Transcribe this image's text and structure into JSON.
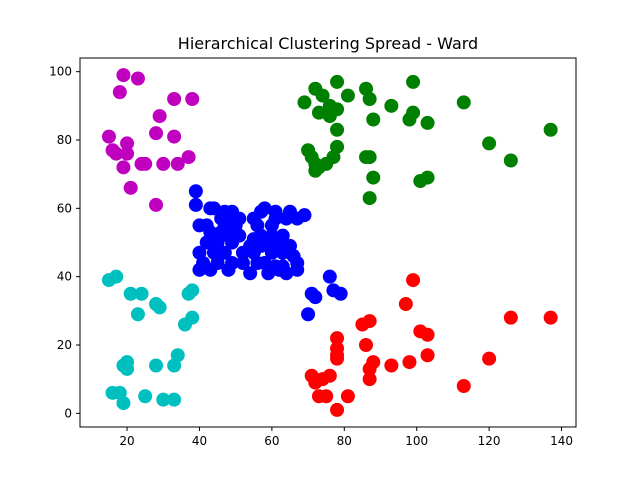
{
  "chart_data": {
    "type": "scatter",
    "title": "Hierarchical Clustering Spread - Ward",
    "xlabel": "",
    "ylabel": "",
    "xlim": [
      7,
      144
    ],
    "ylim": [
      -4,
      104
    ],
    "xticks": [
      20,
      40,
      60,
      80,
      100,
      120,
      140
    ],
    "yticks": [
      0,
      20,
      40,
      60,
      80,
      100
    ],
    "grid": false,
    "series": [
      {
        "color": "#0000ff",
        "points": [
          [
            39,
            65
          ],
          [
            39,
            61
          ],
          [
            43,
            60
          ],
          [
            44,
            60
          ],
          [
            47,
            59
          ],
          [
            49,
            59
          ],
          [
            58,
            60
          ],
          [
            57,
            59
          ],
          [
            61,
            59
          ],
          [
            65,
            59
          ],
          [
            69,
            58
          ],
          [
            67,
            57
          ],
          [
            46,
            57
          ],
          [
            48,
            57
          ],
          [
            51,
            57
          ],
          [
            55,
            57
          ],
          [
            61,
            57
          ],
          [
            64,
            57
          ],
          [
            40,
            55
          ],
          [
            42,
            55
          ],
          [
            47,
            55
          ],
          [
            50,
            55
          ],
          [
            56,
            55
          ],
          [
            60,
            55
          ],
          [
            43,
            53
          ],
          [
            46,
            53
          ],
          [
            48,
            52
          ],
          [
            51,
            52
          ],
          [
            57,
            52
          ],
          [
            60,
            52
          ],
          [
            63,
            52
          ],
          [
            44,
            51
          ],
          [
            55,
            51
          ],
          [
            60,
            51
          ],
          [
            42,
            50
          ],
          [
            45,
            50
          ],
          [
            49,
            50
          ],
          [
            54,
            49
          ],
          [
            57,
            49
          ],
          [
            60,
            49
          ],
          [
            63,
            49
          ],
          [
            65,
            49
          ],
          [
            40,
            47
          ],
          [
            44,
            47
          ],
          [
            47,
            47
          ],
          [
            52,
            47
          ],
          [
            55,
            47
          ],
          [
            60,
            47
          ],
          [
            63,
            47
          ],
          [
            66,
            46
          ],
          [
            41,
            44
          ],
          [
            45,
            44
          ],
          [
            49,
            44
          ],
          [
            52,
            44
          ],
          [
            56,
            44
          ],
          [
            58,
            44
          ],
          [
            61,
            43
          ],
          [
            63,
            43
          ],
          [
            67,
            44
          ],
          [
            40,
            42
          ],
          [
            43,
            42
          ],
          [
            48,
            42
          ],
          [
            54,
            41
          ],
          [
            59,
            41
          ],
          [
            62,
            42
          ],
          [
            64,
            41
          ],
          [
            67,
            42
          ],
          [
            76,
            40
          ],
          [
            71,
            35
          ],
          [
            72,
            34
          ],
          [
            77,
            36
          ],
          [
            79,
            35
          ],
          [
            70,
            29
          ]
        ]
      },
      {
        "color": "#008000",
        "points": [
          [
            72,
            95
          ],
          [
            78,
            97
          ],
          [
            86,
            95
          ],
          [
            99,
            97
          ],
          [
            74,
            93
          ],
          [
            81,
            93
          ],
          [
            87,
            92
          ],
          [
            69,
            91
          ],
          [
            113,
            91
          ],
          [
            76,
            90
          ],
          [
            78,
            89
          ],
          [
            93,
            90
          ],
          [
            73,
            88
          ],
          [
            76,
            87
          ],
          [
            88,
            86
          ],
          [
            98,
            86
          ],
          [
            99,
            88
          ],
          [
            103,
            85
          ],
          [
            78,
            83
          ],
          [
            137,
            83
          ],
          [
            120,
            79
          ],
          [
            70,
            77
          ],
          [
            78,
            78
          ],
          [
            71,
            75
          ],
          [
            72,
            73
          ],
          [
            73,
            72
          ],
          [
            75,
            73
          ],
          [
            77,
            75
          ],
          [
            86,
            75
          ],
          [
            87,
            75
          ],
          [
            126,
            74
          ],
          [
            72,
            71
          ],
          [
            88,
            69
          ],
          [
            101,
            68
          ],
          [
            103,
            69
          ],
          [
            87,
            63
          ]
        ]
      },
      {
        "color": "#ff0000",
        "points": [
          [
            99,
            39
          ],
          [
            97,
            32
          ],
          [
            137,
            28
          ],
          [
            126,
            28
          ],
          [
            87,
            27
          ],
          [
            85,
            26
          ],
          [
            101,
            24
          ],
          [
            103,
            23
          ],
          [
            78,
            22
          ],
          [
            78,
            19
          ],
          [
            86,
            20
          ],
          [
            78,
            17
          ],
          [
            103,
            17
          ],
          [
            78,
            16
          ],
          [
            88,
            15
          ],
          [
            98,
            15
          ],
          [
            120,
            16
          ],
          [
            93,
            14
          ],
          [
            87,
            13
          ],
          [
            71,
            11
          ],
          [
            72,
            9
          ],
          [
            74,
            10
          ],
          [
            76,
            11
          ],
          [
            87,
            10
          ],
          [
            113,
            8
          ],
          [
            73,
            5
          ],
          [
            75,
            5
          ],
          [
            81,
            5
          ],
          [
            78,
            1
          ]
        ]
      },
      {
        "color": "#00bfbf",
        "points": [
          [
            17,
            40
          ],
          [
            15,
            39
          ],
          [
            38,
            36
          ],
          [
            37,
            35
          ],
          [
            21,
            35
          ],
          [
            24,
            35
          ],
          [
            28,
            32
          ],
          [
            29,
            31
          ],
          [
            23,
            29
          ],
          [
            38,
            28
          ],
          [
            36,
            26
          ],
          [
            34,
            17
          ],
          [
            20,
            15
          ],
          [
            19,
            14
          ],
          [
            20,
            13
          ],
          [
            28,
            14
          ],
          [
            33,
            14
          ],
          [
            16,
            6
          ],
          [
            18,
            6
          ],
          [
            25,
            5
          ],
          [
            30,
            4
          ],
          [
            33,
            4
          ],
          [
            19,
            3
          ]
        ]
      },
      {
        "color": "#bf00bf",
        "points": [
          [
            19,
            99
          ],
          [
            23,
            98
          ],
          [
            18,
            94
          ],
          [
            33,
            92
          ],
          [
            38,
            92
          ],
          [
            29,
            87
          ],
          [
            28,
            82
          ],
          [
            33,
            81
          ],
          [
            15,
            81
          ],
          [
            20,
            79
          ],
          [
            16,
            77
          ],
          [
            17,
            76
          ],
          [
            20,
            76
          ],
          [
            37,
            75
          ],
          [
            24,
            73
          ],
          [
            25,
            73
          ],
          [
            30,
            73
          ],
          [
            34,
            73
          ],
          [
            19,
            72
          ],
          [
            21,
            66
          ],
          [
            28,
            61
          ]
        ]
      }
    ]
  }
}
